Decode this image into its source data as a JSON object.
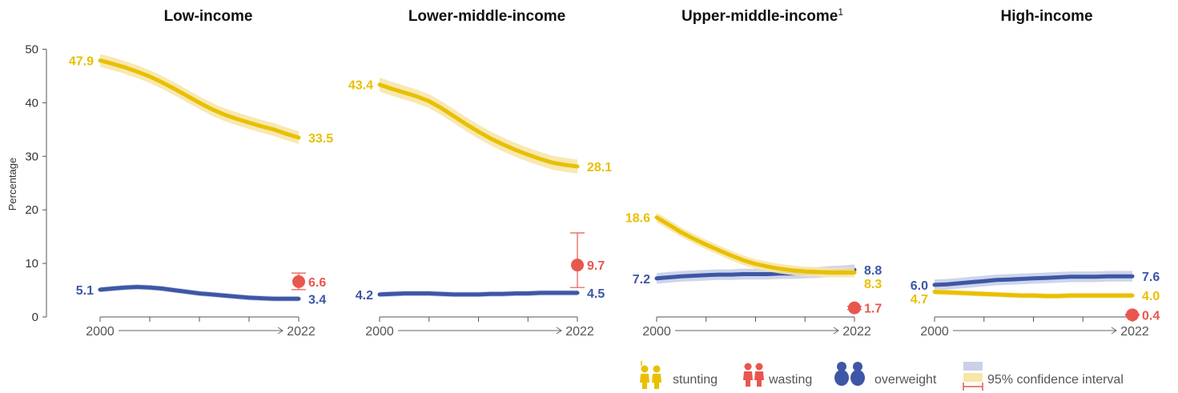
{
  "chart_data": {
    "type": "line",
    "ylabel": "Percentage",
    "ylim": [
      0,
      50
    ],
    "yticks": [
      "0",
      "10",
      "20",
      "30",
      "40",
      "50"
    ],
    "x_start": "2000",
    "x_end": "2022",
    "colors": {
      "stunting": "#e8c000",
      "wasting": "#e8574e",
      "overweight": "#3d57a6",
      "stunting_band": "#f7e6a8",
      "overweight_band": "#c9d0e8"
    },
    "panels": [
      {
        "title": "Low-income",
        "footnote": "",
        "stunting": {
          "values": [
            47.9,
            47.3,
            46.6,
            45.8,
            44.9,
            43.8,
            42.6,
            41.3,
            40.0,
            38.8,
            37.8,
            37.0,
            36.3,
            35.6,
            35.0,
            34.2,
            33.5
          ],
          "band": 1.2,
          "start_label": "47.9",
          "end_label": "33.5"
        },
        "overweight": {
          "values": [
            5.1,
            5.3,
            5.5,
            5.6,
            5.5,
            5.3,
            5.0,
            4.7,
            4.4,
            4.2,
            4.0,
            3.8,
            3.6,
            3.5,
            3.4,
            3.4,
            3.4
          ],
          "band": 0.5,
          "start_label": "5.1",
          "end_label": "3.4"
        },
        "wasting": {
          "value": 6.6,
          "low": 5.1,
          "high": 8.2,
          "label": "6.6"
        }
      },
      {
        "title": "Lower-middle-income",
        "footnote": "",
        "stunting": {
          "values": [
            43.4,
            42.6,
            41.9,
            41.2,
            40.3,
            39.0,
            37.5,
            36.0,
            34.6,
            33.3,
            32.2,
            31.2,
            30.3,
            29.5,
            28.8,
            28.4,
            28.1
          ],
          "band": 1.3,
          "start_label": "43.4",
          "end_label": "28.1"
        },
        "overweight": {
          "values": [
            4.2,
            4.3,
            4.4,
            4.4,
            4.4,
            4.3,
            4.2,
            4.2,
            4.2,
            4.3,
            4.3,
            4.4,
            4.4,
            4.5,
            4.5,
            4.5,
            4.5
          ],
          "band": 0.5,
          "start_label": "4.2",
          "end_label": "4.5"
        },
        "wasting": {
          "value": 9.7,
          "low": 5.5,
          "high": 15.7,
          "label": "9.7"
        }
      },
      {
        "title": "Upper-middle-income",
        "footnote": "1",
        "stunting": {
          "values": [
            18.6,
            17.2,
            15.8,
            14.6,
            13.5,
            12.5,
            11.5,
            10.6,
            9.9,
            9.4,
            9.0,
            8.7,
            8.5,
            8.4,
            8.3,
            8.3,
            8.3
          ],
          "band": 0.9,
          "start_label": "18.6",
          "end_label": "8.3"
        },
        "overweight": {
          "values": [
            7.2,
            7.4,
            7.6,
            7.7,
            7.8,
            7.9,
            7.9,
            8.0,
            8.0,
            8.0,
            8.1,
            8.1,
            8.2,
            8.3,
            8.5,
            8.6,
            8.8
          ],
          "band": 1.0,
          "start_label": "7.2",
          "end_label": "8.8"
        },
        "wasting": {
          "value": 1.7,
          "low": 1.4,
          "high": 2.0,
          "label": "1.7"
        }
      },
      {
        "title": "High-income",
        "footnote": "",
        "stunting": {
          "values": [
            4.7,
            4.6,
            4.5,
            4.4,
            4.3,
            4.2,
            4.1,
            4.0,
            4.0,
            3.9,
            3.9,
            4.0,
            4.0,
            4.0,
            4.0,
            4.0,
            4.0
          ],
          "band": 0.5,
          "start_label": "4.7",
          "end_label": "4.0"
        },
        "overweight": {
          "values": [
            6.0,
            6.1,
            6.3,
            6.5,
            6.7,
            6.9,
            7.0,
            7.1,
            7.2,
            7.3,
            7.4,
            7.5,
            7.5,
            7.5,
            7.6,
            7.6,
            7.6
          ],
          "band": 1.0,
          "start_label": "6.0",
          "end_label": "7.6"
        },
        "wasting": {
          "value": 0.4,
          "low": 0.3,
          "high": 0.5,
          "label": "0.4"
        }
      }
    ],
    "legend": {
      "stunting": "stunting",
      "wasting": "wasting",
      "overweight": "overweight",
      "ci": "95% confidence interval"
    }
  }
}
